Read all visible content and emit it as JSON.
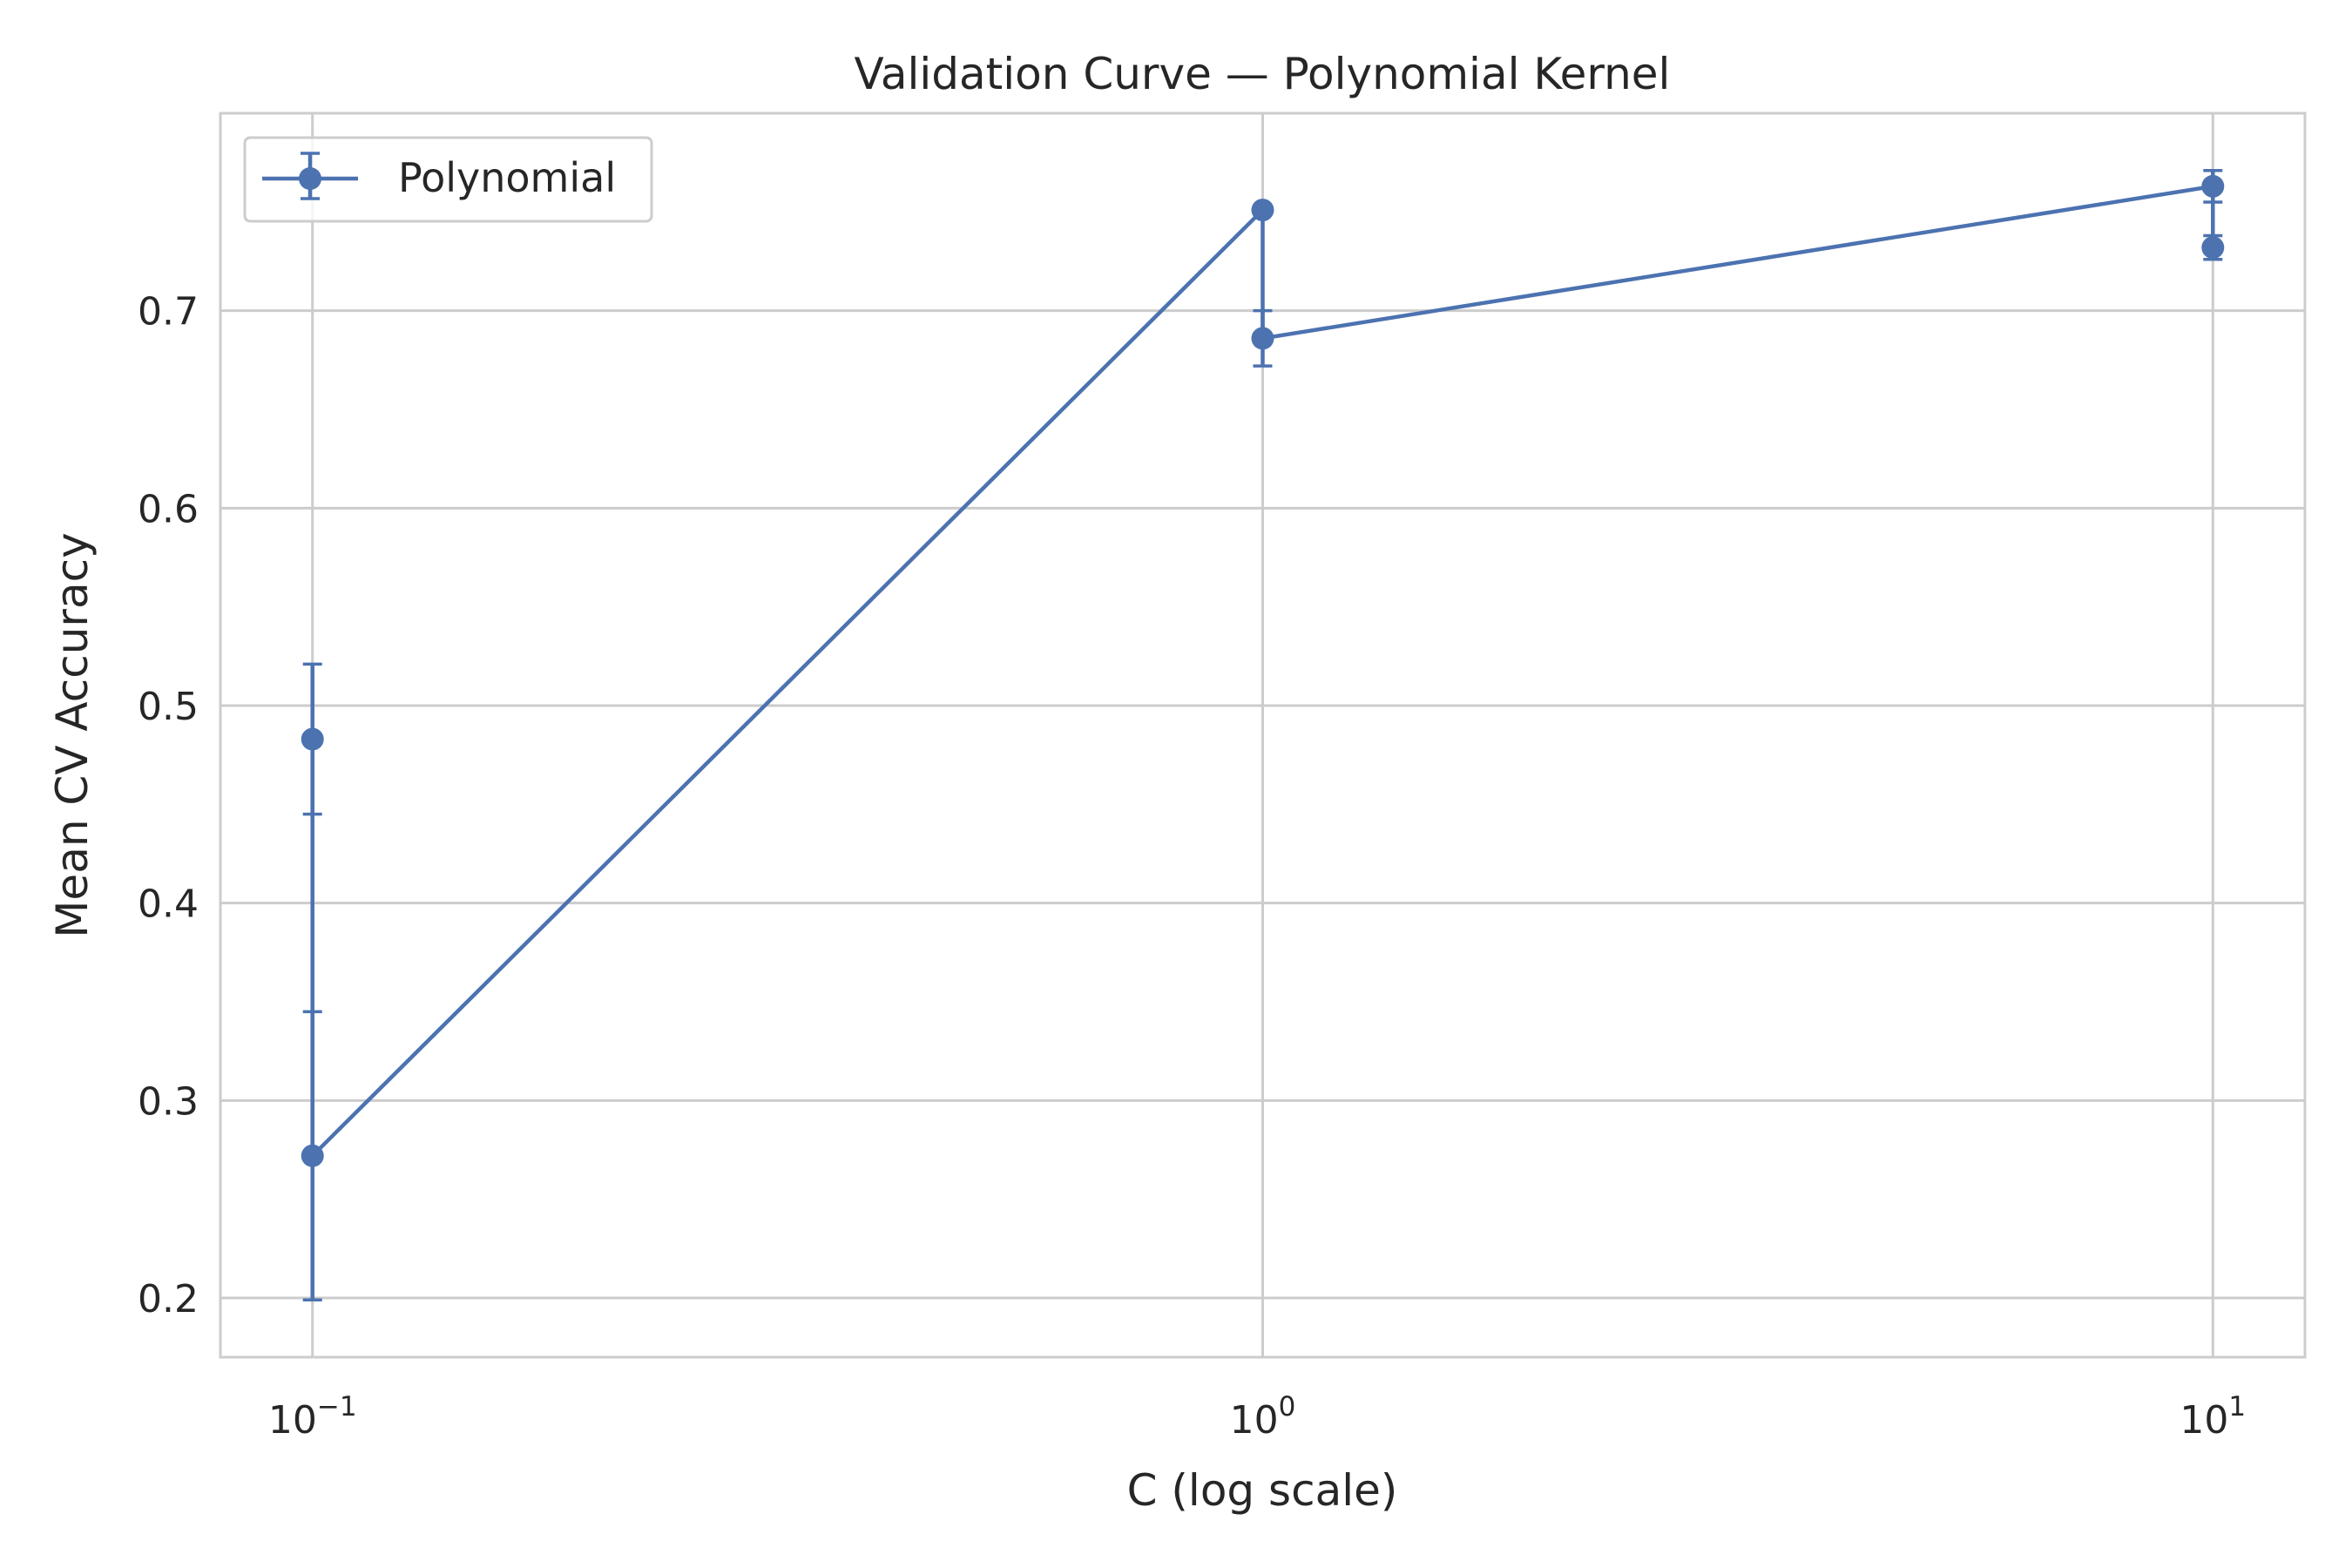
{
  "chart_data": {
    "type": "line",
    "title": "Validation Curve — Polynomial Kernel",
    "xlabel": "C (log scale)",
    "ylabel": "Mean CV Accuracy",
    "x_scale": "log",
    "xlim": [
      0.08,
      12.5
    ],
    "ylim": [
      0.17,
      0.8
    ],
    "grid": true,
    "legend_position": "top-left",
    "x_ticks": [
      {
        "value": 0.1,
        "base": "10",
        "exp": "−1"
      },
      {
        "value": 1,
        "base": "10",
        "exp": "0"
      },
      {
        "value": 10,
        "base": "10",
        "exp": "1"
      }
    ],
    "y_ticks": [
      {
        "value": 0.2,
        "label": "0.2"
      },
      {
        "value": 0.3,
        "label": "0.3"
      },
      {
        "value": 0.4,
        "label": "0.4"
      },
      {
        "value": 0.5,
        "label": "0.5"
      },
      {
        "value": 0.6,
        "label": "0.6"
      },
      {
        "value": 0.7,
        "label": "0.7"
      }
    ],
    "series": [
      {
        "name": "Polynomial",
        "color": "#4c72b0",
        "marker": "circle",
        "points": [
          {
            "x": 0.1,
            "y": 0.483,
            "err": 0.038
          },
          {
            "x": 0.1,
            "y": 0.272,
            "err": 0.073
          },
          {
            "x": 1,
            "y": 0.751,
            "err": 0.0
          },
          {
            "x": 1,
            "y": 0.686,
            "err": 0.014
          },
          {
            "x": 10,
            "y": 0.763,
            "err": 0.008
          },
          {
            "x": 10,
            "y": 0.732,
            "err": 0.006
          }
        ]
      }
    ]
  }
}
